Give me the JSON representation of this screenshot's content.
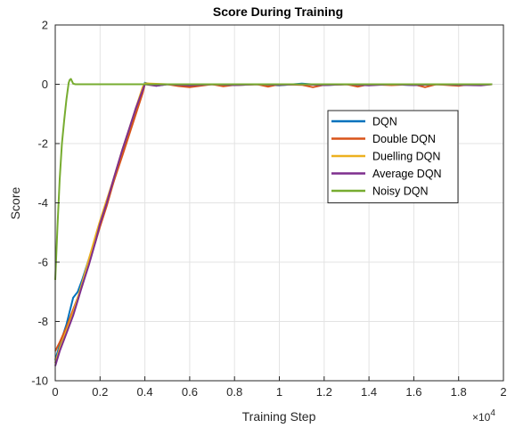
{
  "chart_data": {
    "type": "line",
    "title": "Score During Training",
    "xlabel": "Training Step",
    "ylabel": "Score",
    "x_multiplier_label": "×10",
    "x_multiplier_exp": "4",
    "xlim": [
      0,
      20000
    ],
    "ylim": [
      -10,
      2
    ],
    "x_ticks": [
      0,
      2000,
      4000,
      6000,
      8000,
      10000,
      12000,
      14000,
      16000,
      18000,
      20000
    ],
    "x_tick_labels": [
      "0",
      "0.2",
      "0.4",
      "0.6",
      "0.8",
      "1",
      "1.2",
      "1.4",
      "1.6",
      "1.8",
      "2"
    ],
    "y_ticks": [
      -10,
      -8,
      -6,
      -4,
      -2,
      0,
      2
    ],
    "y_tick_labels": [
      "-10",
      "-8",
      "-6",
      "-4",
      "-2",
      "0",
      "2"
    ],
    "grid": true,
    "legend_position": "right-middle",
    "series": [
      {
        "name": "DQN",
        "color": "#0072BD",
        "x": [
          0,
          200,
          500,
          800,
          1000,
          1200,
          1500,
          1800,
          2000,
          2300,
          2600,
          3000,
          3300,
          3600,
          3900,
          4000,
          4500,
          5000,
          6000,
          7000,
          8000,
          9000,
          10000,
          11000,
          12000,
          13000,
          14000,
          15000,
          16000,
          17000,
          18000,
          19000,
          19500
        ],
        "y": [
          -9.3,
          -8.8,
          -8.1,
          -7.2,
          -7.0,
          -6.6,
          -5.9,
          -5.2,
          -4.7,
          -4.0,
          -3.3,
          -2.3,
          -1.6,
          -0.9,
          -0.2,
          0.05,
          -0.05,
          0.0,
          -0.05,
          0.0,
          -0.03,
          0.0,
          -0.04,
          0.02,
          -0.03,
          0.0,
          -0.02,
          0.0,
          -0.03,
          0.0,
          -0.02,
          0.0,
          0.0
        ]
      },
      {
        "name": "Double DQN",
        "color": "#D95319",
        "x": [
          0,
          200,
          500,
          800,
          1000,
          1200,
          1500,
          1800,
          2000,
          2300,
          2600,
          3000,
          3300,
          3600,
          3900,
          4000,
          4500,
          5000,
          5500,
          6000,
          7000,
          7500,
          8000,
          9000,
          9500,
          10000,
          11000,
          11500,
          12000,
          13000,
          13500,
          14000,
          15000,
          16000,
          16500,
          17000,
          18000,
          18500,
          19000,
          19500
        ],
        "y": [
          -9.0,
          -8.7,
          -8.2,
          -7.6,
          -7.2,
          -6.8,
          -6.0,
          -5.3,
          -4.8,
          -4.1,
          -3.3,
          -2.4,
          -1.7,
          -1.0,
          -0.3,
          0.02,
          -0.03,
          0.0,
          -0.06,
          -0.1,
          0.0,
          -0.07,
          -0.02,
          0.0,
          -0.08,
          0.0,
          -0.02,
          -0.1,
          -0.02,
          0.0,
          -0.08,
          0.0,
          -0.03,
          0.0,
          -0.1,
          0.0,
          -0.05,
          0.0,
          -0.02,
          0.0
        ]
      },
      {
        "name": "Duelling DQN",
        "color": "#EDB120",
        "x": [
          0,
          200,
          500,
          800,
          1000,
          1200,
          1500,
          1800,
          2000,
          2300,
          2600,
          3000,
          3300,
          3600,
          3900,
          4000,
          5000,
          6000,
          7000,
          8000,
          9000,
          10000,
          11000,
          12000,
          13000,
          14000,
          15000,
          16000,
          17000,
          18000,
          19000,
          19500
        ],
        "y": [
          -9.4,
          -8.9,
          -8.3,
          -7.7,
          -7.2,
          -6.7,
          -5.9,
          -5.1,
          -4.6,
          -3.9,
          -3.2,
          -2.2,
          -1.5,
          -0.8,
          -0.1,
          0.03,
          0.0,
          -0.02,
          0.0,
          -0.03,
          0.0,
          -0.02,
          0.0,
          -0.01,
          0.0,
          -0.02,
          0.0,
          -0.01,
          0.0,
          -0.02,
          0.0,
          0.0
        ]
      },
      {
        "name": "Average DQN",
        "color": "#7E2F8E",
        "x": [
          0,
          200,
          500,
          800,
          1000,
          1200,
          1500,
          1800,
          2000,
          2300,
          2600,
          3000,
          3300,
          3600,
          3900,
          4000,
          4500,
          5000,
          6000,
          7000,
          8000,
          9000,
          10000,
          11000,
          12000,
          13000,
          14000,
          15000,
          16000,
          17000,
          18000,
          19000,
          19500
        ],
        "y": [
          -9.5,
          -9.0,
          -8.4,
          -7.8,
          -7.3,
          -6.8,
          -6.1,
          -5.3,
          -4.7,
          -4.0,
          -3.2,
          -2.2,
          -1.5,
          -0.8,
          -0.2,
          0.0,
          -0.05,
          0.0,
          -0.04,
          0.0,
          -0.03,
          0.0,
          -0.02,
          0.0,
          -0.03,
          0.0,
          -0.04,
          0.0,
          -0.03,
          0.0,
          -0.02,
          -0.04,
          0.0
        ]
      },
      {
        "name": "Noisy DQN",
        "color": "#77AC30",
        "x": [
          0,
          100,
          200,
          300,
          400,
          500,
          600,
          650,
          700,
          800,
          900,
          1000,
          2000,
          4000,
          6000,
          8000,
          10000,
          12000,
          14000,
          16000,
          18000,
          19500
        ],
        "y": [
          -6.6,
          -4.8,
          -3.2,
          -2.0,
          -1.2,
          -0.5,
          0.05,
          0.15,
          0.18,
          0.02,
          0.0,
          0.0,
          0.0,
          0.0,
          0.0,
          0.0,
          0.0,
          0.0,
          0.0,
          0.0,
          0.0,
          0.0
        ]
      }
    ]
  }
}
